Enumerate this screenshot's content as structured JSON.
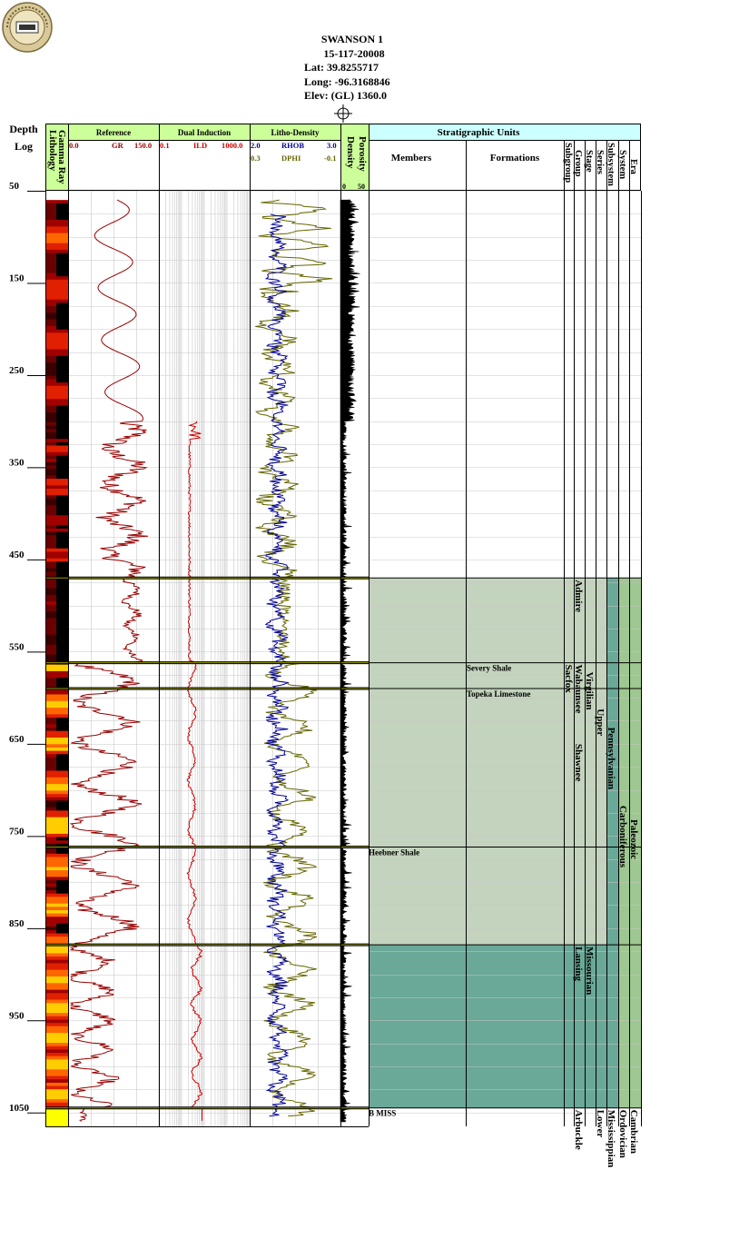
{
  "header": {
    "well_name": "SWANSON 1",
    "api": "15-117-20008",
    "lat": "Lat: 39.8255717",
    "long": "Long: -96.3168846",
    "elev": "Elev: (GL) 1360.0"
  },
  "columns": {
    "depth_title": "Depth",
    "depth_sub": "Log",
    "lithology": "Lithology",
    "gamma": "Gamma Ray",
    "reference": "Reference",
    "dual_induction": "Dual Induction",
    "litho_density": "Litho-Density",
    "porosity": "Porosity",
    "density": "Density",
    "strat_units": "Stratigraphic Units",
    "members": "Members",
    "formations": "Formations",
    "subgroup": "Subgroup",
    "group": "Group",
    "stage": "Stage",
    "series": "Series",
    "subsystem": "Subsystem",
    "system": "System",
    "era": "Era"
  },
  "colors": {
    "header_green": "#ccff99",
    "strat_header": "#ccffff",
    "gr_red": "#990000",
    "rhob_blue": "#000099",
    "dphi_olive": "#666600",
    "ild_red": "#cc0000",
    "virgilian_fill": "#c3d3bd",
    "missourian_fill": "#6aa897",
    "paleozoic_fill": "#9fc791"
  },
  "chart_data": {
    "type": "well-log",
    "ylim": [
      50,
      1065
    ],
    "depth_ticks": [
      "50",
      "150",
      "250",
      "350",
      "450",
      "550",
      "650",
      "750",
      "850",
      "950",
      "1050"
    ],
    "tracks": {
      "gr": {
        "label": "GR",
        "min": "0.0",
        "max": "150.0"
      },
      "ild": {
        "label": "ILD",
        "min": "0.1",
        "max": "1000.0"
      },
      "rhob": {
        "label": "RHOB",
        "min": "2.0",
        "max": "3.0"
      },
      "dphi": {
        "label": "DPHI",
        "min": "0.3",
        "max": "-0.1"
      },
      "porosity": {
        "min": "0",
        "max": "50"
      }
    },
    "tops": [
      {
        "depth": 470,
        "name": "Admire",
        "level": "group"
      },
      {
        "depth": 562,
        "name": "Severy Shale",
        "level": "formation"
      },
      {
        "depth": 590,
        "name": "Topeka Limestone",
        "level": "formation"
      },
      {
        "depth": 762,
        "name": "Heebner Shale",
        "level": "member"
      },
      {
        "depth": 868,
        "name": "Lansing",
        "level": "group"
      },
      {
        "depth": 1045,
        "name": "B MISS",
        "level": "member"
      }
    ],
    "units": {
      "groups": [
        {
          "name": "Admire",
          "top": 470,
          "base": 562
        },
        {
          "name": "Wabaunsee",
          "top": 562,
          "base": 590
        },
        {
          "name": "Shawnee",
          "top": 648,
          "base": 762
        },
        {
          "name": "Lansing",
          "top": 868,
          "base": 1045
        },
        {
          "name": "Arbuckle",
          "top": 1045,
          "base": 1065
        }
      ],
      "subgroups": [
        {
          "name": "Sacfox",
          "top": 562,
          "base": 650
        }
      ],
      "stages": [
        {
          "name": "Virgilian",
          "top": 470,
          "base": 868
        },
        {
          "name": "Missourian",
          "top": 868,
          "base": 1045
        }
      ],
      "series": [
        {
          "name": "Upper",
          "top": 470,
          "base": 1045
        },
        {
          "name": "Lower",
          "top": 1045,
          "base": 1065
        }
      ],
      "subsystems": [
        {
          "name": "Pennsylvanian",
          "top": 470,
          "base": 1045
        },
        {
          "name": "Mississippian",
          "top": 1045,
          "base": 1065
        }
      ],
      "systems": [
        {
          "name": "Carboniferous",
          "top": 470,
          "base": 1045
        },
        {
          "name": "Ordovician",
          "top": 1045,
          "base": 1065
        }
      ],
      "eras": [
        {
          "name": "Paleozoic",
          "top": 470,
          "base": 1045
        },
        {
          "name": "Cambrian",
          "top": 1045,
          "base": 1065
        }
      ]
    }
  }
}
